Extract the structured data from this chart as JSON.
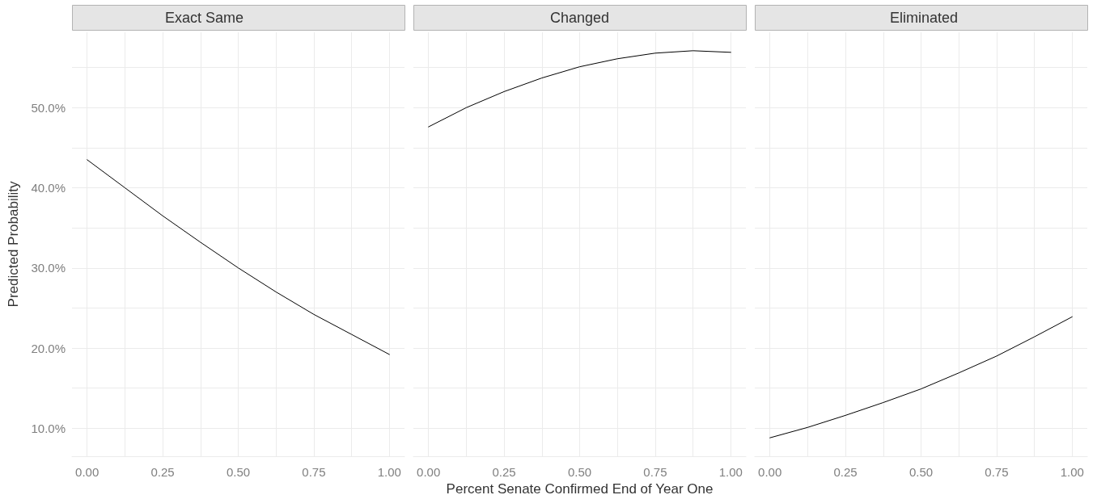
{
  "chart_data": [
    {
      "type": "line",
      "title": "Exact Same",
      "ylabel": "Predicted Probability",
      "x": [
        0,
        0.125,
        0.25,
        0.375,
        0.5,
        0.625,
        0.75,
        0.875,
        1
      ],
      "series": [
        {
          "color": "#000000",
          "values": [
            43.5,
            40.0,
            36.5,
            33.2,
            30.0,
            27.0,
            24.2,
            21.7,
            19.2
          ]
        }
      ],
      "xlim": [
        -0.05,
        1.05
      ],
      "xticks": [
        {
          "value": 0,
          "label": "0.00"
        },
        {
          "value": 0.125,
          "label": null
        },
        {
          "value": 0.25,
          "label": "0.25"
        },
        {
          "value": 0.375,
          "label": null
        },
        {
          "value": 0.5,
          "label": "0.50"
        },
        {
          "value": 0.625,
          "label": null
        },
        {
          "value": 0.75,
          "label": "0.75"
        },
        {
          "value": 0.875,
          "label": null
        },
        {
          "value": 1,
          "label": "1.00"
        }
      ],
      "ylim": [
        6.5,
        59.4
      ],
      "yticks": [
        {
          "value": 10,
          "label": "10.0%"
        },
        {
          "value": 15,
          "label": null
        },
        {
          "value": 20,
          "label": "20.0%"
        },
        {
          "value": 25,
          "label": null
        },
        {
          "value": 30,
          "label": "30.0%"
        },
        {
          "value": 35,
          "label": null
        },
        {
          "value": 40,
          "label": "40.0%"
        },
        {
          "value": 45,
          "label": null
        },
        {
          "value": 50,
          "label": "50.0%"
        },
        {
          "value": 55,
          "label": null
        }
      ],
      "grid": true,
      "marker": "none",
      "line_style": "solid"
    },
    {
      "type": "line",
      "title": "Changed",
      "xlabel": "Percent Senate Confirmed End of Year One",
      "x": [
        0,
        0.125,
        0.25,
        0.375,
        0.5,
        0.625,
        0.75,
        0.875,
        1
      ],
      "series": [
        {
          "color": "#000000",
          "values": [
            47.6,
            50.0,
            52.0,
            53.7,
            55.1,
            56.1,
            56.8,
            57.1,
            56.9
          ]
        }
      ],
      "xlim": [
        -0.05,
        1.05
      ],
      "xticks": [
        {
          "value": 0,
          "label": "0.00"
        },
        {
          "value": 0.125,
          "label": null
        },
        {
          "value": 0.25,
          "label": "0.25"
        },
        {
          "value": 0.375,
          "label": null
        },
        {
          "value": 0.5,
          "label": "0.50"
        },
        {
          "value": 0.625,
          "label": null
        },
        {
          "value": 0.75,
          "label": "0.75"
        },
        {
          "value": 0.875,
          "label": null
        },
        {
          "value": 1,
          "label": "1.00"
        }
      ],
      "ylim": [
        6.5,
        59.4
      ],
      "yticks": [
        {
          "value": 10,
          "label": null
        },
        {
          "value": 15,
          "label": null
        },
        {
          "value": 20,
          "label": null
        },
        {
          "value": 25,
          "label": null
        },
        {
          "value": 30,
          "label": null
        },
        {
          "value": 35,
          "label": null
        },
        {
          "value": 40,
          "label": null
        },
        {
          "value": 45,
          "label": null
        },
        {
          "value": 50,
          "label": null
        },
        {
          "value": 55,
          "label": null
        }
      ],
      "tick_labels": "x",
      "grid": true,
      "marker": "none",
      "line_style": "solid"
    },
    {
      "type": "line",
      "title": "Eliminated",
      "x": [
        0,
        0.125,
        0.25,
        0.375,
        0.5,
        0.625,
        0.75,
        0.875,
        1
      ],
      "series": [
        {
          "color": "#000000",
          "values": [
            8.8,
            10.1,
            11.6,
            13.2,
            14.9,
            16.9,
            19.0,
            21.4,
            23.9
          ]
        }
      ],
      "xlim": [
        -0.05,
        1.05
      ],
      "xticks": [
        {
          "value": 0,
          "label": "0.00"
        },
        {
          "value": 0.125,
          "label": null
        },
        {
          "value": 0.25,
          "label": "0.25"
        },
        {
          "value": 0.375,
          "label": null
        },
        {
          "value": 0.5,
          "label": "0.50"
        },
        {
          "value": 0.625,
          "label": null
        },
        {
          "value": 0.75,
          "label": "0.75"
        },
        {
          "value": 0.875,
          "label": null
        },
        {
          "value": 1,
          "label": "1.00"
        }
      ],
      "ylim": [
        6.5,
        59.4
      ],
      "yticks": [
        {
          "value": 10,
          "label": null
        },
        {
          "value": 15,
          "label": null
        },
        {
          "value": 20,
          "label": null
        },
        {
          "value": 25,
          "label": null
        },
        {
          "value": 30,
          "label": null
        },
        {
          "value": 35,
          "label": null
        },
        {
          "value": 40,
          "label": null
        },
        {
          "value": 45,
          "label": null
        },
        {
          "value": 50,
          "label": null
        },
        {
          "value": 55,
          "label": null
        }
      ],
      "tick_labels": "x",
      "grid": true,
      "marker": "none",
      "line_style": "solid"
    }
  ]
}
